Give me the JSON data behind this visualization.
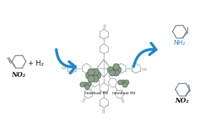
{
  "bg_color": "#ffffff",
  "arrow_color": "#2486c8",
  "struct_color": "#aab4ba",
  "nanoparticle_fill": "#8a9e8a",
  "nanoparticle_edge": "#4a5e4a",
  "text_color": "#111111",
  "blue_text_color": "#2486c8",
  "label_residual": "residual Pd",
  "label_h2": "+ H₂",
  "label_nh2": "NH₂",
  "label_no2": "NO₂"
}
